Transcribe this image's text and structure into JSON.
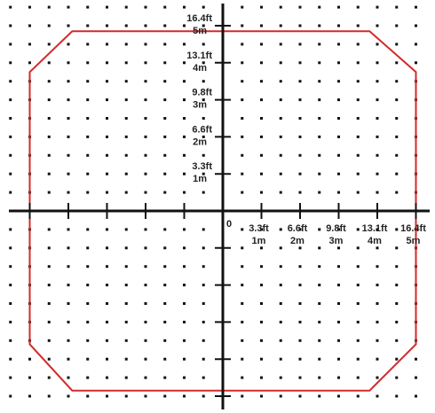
{
  "chart_data": {
    "type": "scatter",
    "title": "",
    "xlabel": "",
    "ylabel": "",
    "xlim": [
      -5.5,
      5.5
    ],
    "ylim": [
      -5.5,
      5.5
    ],
    "grid": "dots",
    "grid_step": 0.5,
    "origin_label": "0",
    "x_ticks": [
      {
        "value": 1,
        "ft": "3.3ft",
        "m": "1m"
      },
      {
        "value": 2,
        "ft": "6.6ft",
        "m": "2m"
      },
      {
        "value": 3,
        "ft": "9.8ft",
        "m": "3m"
      },
      {
        "value": 4,
        "ft": "13.1ft",
        "m": "4m"
      },
      {
        "value": 5,
        "ft": "16.4ft",
        "m": "5m"
      }
    ],
    "y_ticks": [
      {
        "value": 1,
        "ft": "3.3ft",
        "m": "1m"
      },
      {
        "value": 2,
        "ft": "6.6ft",
        "m": "2m"
      },
      {
        "value": 3,
        "ft": "9.8ft",
        "m": "3m"
      },
      {
        "value": 4,
        "ft": "13.1ft",
        "m": "4m"
      },
      {
        "value": 5,
        "ft": "16.4ft",
        "m": "5m"
      }
    ],
    "tick_positions": [
      -5,
      -4,
      -3,
      -2,
      -1,
      1,
      2,
      3,
      4,
      5
    ],
    "outline": {
      "color": "#d42a2a",
      "points": [
        [
          -3.9,
          4.85
        ],
        [
          3.8,
          4.85
        ],
        [
          5.0,
          3.75
        ],
        [
          5.0,
          -3.6
        ],
        [
          3.8,
          -4.85
        ],
        [
          -3.9,
          -4.85
        ],
        [
          -5.0,
          -3.6
        ],
        [
          -5.0,
          3.75
        ]
      ]
    },
    "axis_color": "#111111",
    "dot_color": "#111111"
  }
}
